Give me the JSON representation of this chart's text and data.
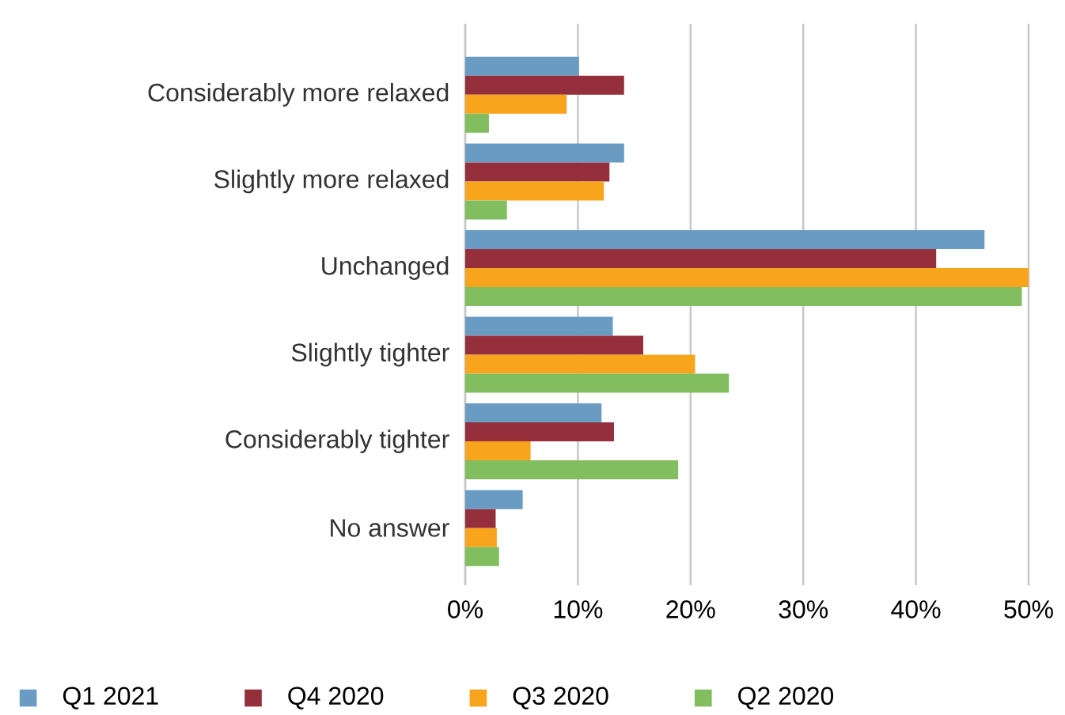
{
  "chart_data": {
    "type": "bar",
    "orientation": "horizontal",
    "categories": [
      "Considerably more relaxed",
      "Slightly more relaxed",
      "Unchanged",
      "Slightly tighter",
      "Considerably tighter",
      "No answer"
    ],
    "series": [
      {
        "name": "Q1 2021",
        "color": "#6a9bc3",
        "values": [
          10.1,
          14.1,
          46.1,
          13.1,
          12.1,
          5.1
        ]
      },
      {
        "name": "Q4 2020",
        "color": "#952f3c",
        "values": [
          14.1,
          12.8,
          41.8,
          15.8,
          13.2,
          2.7
        ]
      },
      {
        "name": "Q3 2020",
        "color": "#f8a51d",
        "values": [
          9.0,
          12.3,
          50.0,
          20.4,
          5.8,
          2.8
        ]
      },
      {
        "name": "Q2 2020",
        "color": "#82bd5f",
        "values": [
          2.1,
          3.7,
          49.4,
          23.4,
          18.9,
          3.0
        ]
      }
    ],
    "xlim": [
      0,
      50
    ],
    "xticks": [
      {
        "value": 0,
        "label": "0%"
      },
      {
        "value": 10,
        "label": "10%"
      },
      {
        "value": 20,
        "label": "20%"
      },
      {
        "value": 30,
        "label": "30%"
      },
      {
        "value": 40,
        "label": "40%"
      },
      {
        "value": 50,
        "label": "50%"
      }
    ],
    "grid": "x",
    "legend": "bottom"
  }
}
